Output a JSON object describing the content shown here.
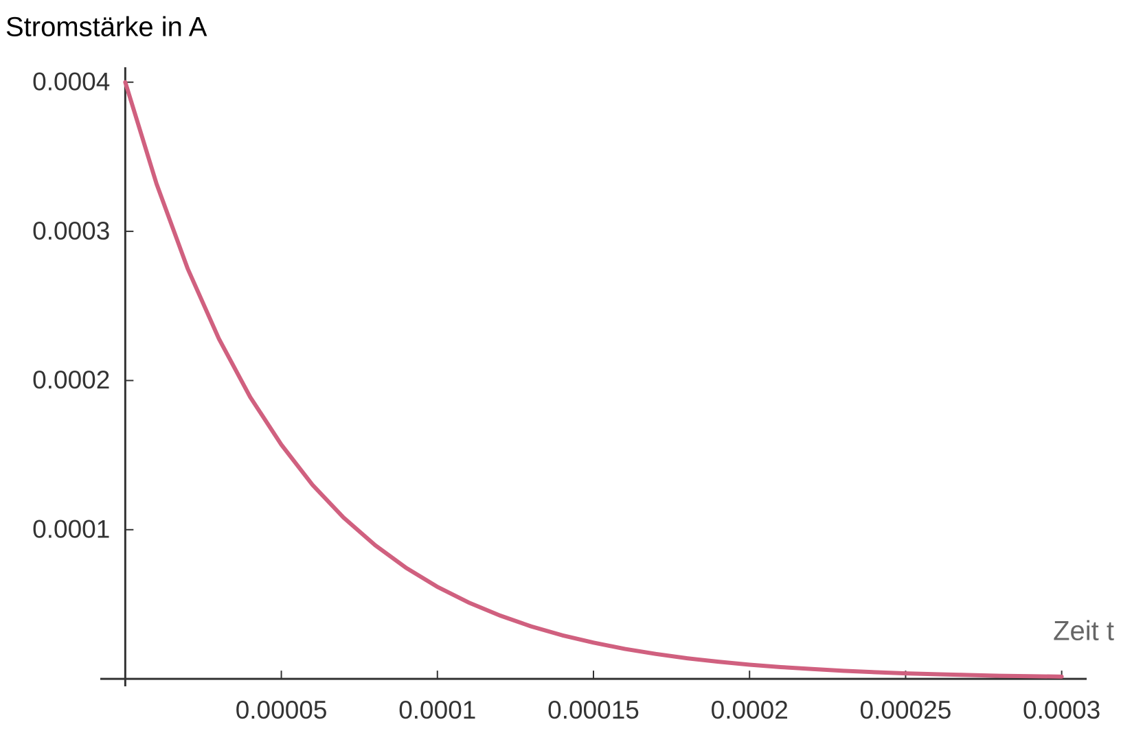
{
  "chart_data": {
    "type": "line",
    "title": "Stromstärke in A",
    "x_label": "Zeit t",
    "x": [
      0,
      1e-05,
      2e-05,
      3e-05,
      4e-05,
      5e-05,
      6e-05,
      7e-05,
      8e-05,
      9e-05,
      0.0001,
      0.00011,
      0.00012,
      0.00013,
      0.00014,
      0.00015,
      0.00016,
      0.00017,
      0.00018,
      0.00019,
      0.0002,
      0.00021,
      0.00022,
      0.00023,
      0.00024,
      0.00025,
      0.00026,
      0.00027,
      0.00028,
      0.00029,
      0.0003
    ],
    "series": [
      {
        "color": "#d0607f",
        "values": [
          0.0004,
          0.000332,
          0.000275,
          0.000228,
          0.000189,
          0.000157,
          0.00013,
          0.000108,
          8.97e-05,
          7.44e-05,
          6.17e-05,
          5.12e-05,
          4.25e-05,
          3.52e-05,
          2.92e-05,
          2.43e-05,
          2.01e-05,
          1.67e-05,
          1.38e-05,
          1.15e-05,
          9.5e-06,
          7.9e-06,
          6.6e-06,
          5.4e-06,
          4.5e-06,
          3.7e-06,
          3.1e-06,
          2.6e-06,
          2.1e-06,
          1.8e-06,
          1.5e-06
        ]
      }
    ],
    "xlim": [
      -8e-06,
      0.000308
    ],
    "ylim": [
      -5e-06,
      0.00041
    ],
    "xticks": [
      5e-05,
      0.0001,
      0.00015,
      0.0002,
      0.00025,
      0.0003
    ],
    "yticks": [
      0.0001,
      0.0002,
      0.0003,
      0.0004
    ],
    "grid": false
  }
}
